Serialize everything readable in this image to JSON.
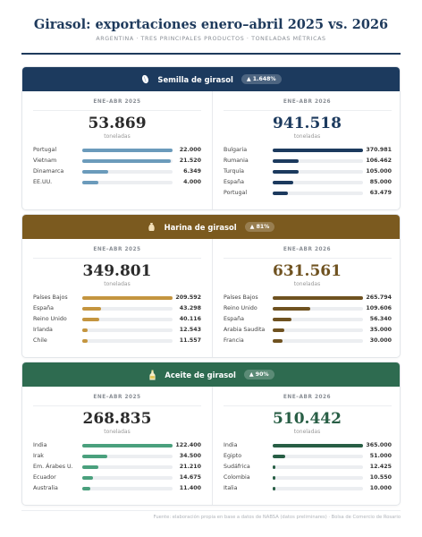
{
  "header": {
    "title": "Girasol: exportaciones enero–abril 2025 vs. 2026",
    "subtitle": "ARGENTINA  ·  TRES PRINCIPALES PRODUCTOS  ·  TONELADAS MÉTRICAS"
  },
  "unit_label": "toneladas",
  "footer": {
    "source": "Fuente: elaboración propia en base a datos de NABSA (datos preliminares)  ·  Bolsa de Comercio de Rosario"
  },
  "colors": {
    "title": "#1e3a5c",
    "semilla_head": "#1c3a5e",
    "semilla_bar_2025": "#6b9bbb",
    "semilla_bar_2026": "#1c3a5e",
    "harina_head": "#7b5a1f",
    "harina_bar_2025": "#c4953f",
    "harina_bar_2026": "#6f5220",
    "aceite_head": "#2e6b50",
    "aceite_bar_2025": "#4aa07d",
    "aceite_bar_2026": "#285e45"
  },
  "chart_data": [
    {
      "type": "bar",
      "title": "Semilla de girasol",
      "icon": "seed-icon",
      "change_badge": "▲ 1.648%",
      "periods": [
        {
          "label": "ENE–ABR 2025",
          "total": "53.869",
          "categories": [
            "Portugal",
            "Vietnam",
            "Dinamarca",
            "EE.UU."
          ],
          "values": [
            22000,
            21520,
            6349,
            4000
          ],
          "value_labels": [
            "22.000",
            "21.520",
            "6.349",
            "4.000"
          ]
        },
        {
          "label": "ENE–ABR 2026",
          "total": "941.518",
          "categories": [
            "Bulgaria",
            "Rumania",
            "Turquía",
            "España",
            "Portugal"
          ],
          "values": [
            370981,
            106462,
            105000,
            85000,
            63479
          ],
          "value_labels": [
            "370.981",
            "106.462",
            "105.000",
            "85.000",
            "63.479"
          ]
        }
      ]
    },
    {
      "type": "bar",
      "title": "Harina de girasol",
      "icon": "flour-sack-icon",
      "change_badge": "▲ 81%",
      "periods": [
        {
          "label": "ENE–ABR 2025",
          "total": "349.801",
          "categories": [
            "Países Bajos",
            "España",
            "Reino Unido",
            "Irlanda",
            "Chile"
          ],
          "values": [
            209592,
            43298,
            40116,
            12543,
            11557
          ],
          "value_labels": [
            "209.592",
            "43.298",
            "40.116",
            "12.543",
            "11.557"
          ]
        },
        {
          "label": "ENE–ABR 2026",
          "total": "631.561",
          "categories": [
            "Países Bajos",
            "Reino Unido",
            "España",
            "Arabia Saudita",
            "Francia"
          ],
          "values": [
            265794,
            109606,
            56340,
            35000,
            30000
          ],
          "value_labels": [
            "265.794",
            "109.606",
            "56.340",
            "35.000",
            "30.000"
          ]
        }
      ]
    },
    {
      "type": "bar",
      "title": "Aceite de girasol",
      "icon": "oil-bottle-icon",
      "change_badge": "▲ 90%",
      "periods": [
        {
          "label": "ENE–ABR 2025",
          "total": "268.835",
          "categories": [
            "India",
            "Irak",
            "Em. Árabes U.",
            "Ecuador",
            "Australia"
          ],
          "values": [
            122400,
            34500,
            21210,
            14675,
            11400
          ],
          "value_labels": [
            "122.400",
            "34.500",
            "21.210",
            "14.675",
            "11.400"
          ]
        },
        {
          "label": "ENE–ABR 2026",
          "total": "510.442",
          "categories": [
            "India",
            "Egipto",
            "Sudáfrica",
            "Colombia",
            "Italia"
          ],
          "values": [
            365000,
            51000,
            12425,
            10550,
            10000
          ],
          "value_labels": [
            "365.000",
            "51.000",
            "12.425",
            "10.550",
            "10.000"
          ]
        }
      ]
    }
  ]
}
